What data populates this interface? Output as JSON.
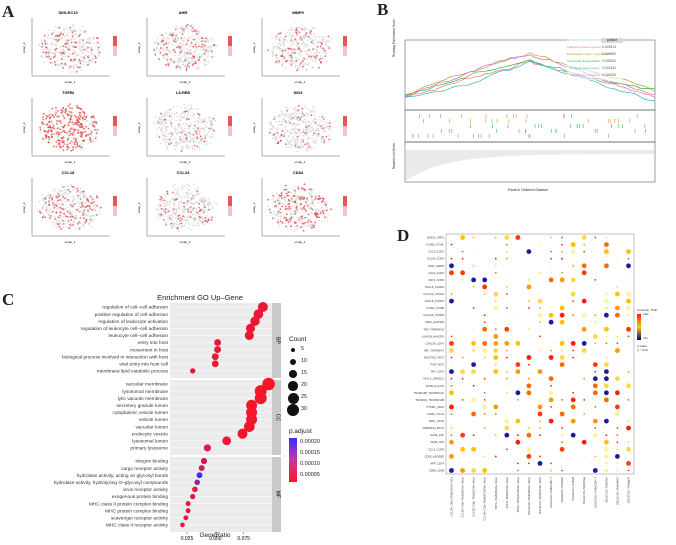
{
  "panels": {
    "A": {
      "label": "A",
      "plots": [
        {
          "title": "SIGLEC10"
        },
        {
          "title": "AHR"
        },
        {
          "title": "MMP9"
        },
        {
          "title": "TGFBI"
        },
        {
          "title": "LILRB5"
        },
        {
          "title": "SID3"
        },
        {
          "title": "CCL18"
        },
        {
          "title": "CCL24"
        },
        {
          "title": "CD84"
        }
      ],
      "xlabel": "umap_1",
      "ylabel": "umap_2"
    },
    "B": {
      "label": "B",
      "ylabel_top": "Running Enrichment Score",
      "ylabel_bottom": "Ranked List Metric",
      "xlabel": "Rank in Ordered Dataset",
      "pvalue_header": "pvalue",
      "pvalues": [
        "0.025414",
        "0.026852",
        "0.005302",
        "0.021631",
        "0.025120"
      ],
      "gene_sets": [
        {
          "name": "Adaptive Immune System",
          "color": "#e87b6c"
        },
        {
          "name": "Extracellular matrix organization",
          "color": "#b9a12c"
        },
        {
          "name": "Neutrophil degranulation",
          "color": "#33b24d"
        },
        {
          "name": "Innate immune system",
          "color": "#29b6c9"
        },
        {
          "name": "Signaling by receptors",
          "color": "#d46ad8"
        }
      ]
    },
    "C": {
      "label": "C",
      "title": "Enrichment GO Up–Gene",
      "xlabel": "GeneRatio",
      "x_ticks": [
        "0.025",
        "0.050",
        "0.075"
      ],
      "size_legend_title": "Count",
      "size_legend": [
        "5",
        "10",
        "15",
        "20",
        "25",
        "30"
      ],
      "color_legend_title": "p.adjust",
      "color_legend": [
        "0.00020",
        "0.00015",
        "0.00010",
        "0.00005"
      ],
      "facets": [
        {
          "name": "BP",
          "terms": [
            {
              "term": "regulation of cell–cell adhesion",
              "ratio": 0.092,
              "count": 22,
              "padj": 2e-05
            },
            {
              "term": "positive regulation of cell adhesion",
              "ratio": 0.088,
              "count": 21,
              "padj": 2e-05
            },
            {
              "term": "regulation of leukocyte activation",
              "ratio": 0.085,
              "count": 20,
              "padj": 2e-05
            },
            {
              "term": "regulation of leukocyte cell–cell adhesion",
              "ratio": 0.081,
              "count": 19,
              "padj": 2e-05
            },
            {
              "term": "leukocyte cell–cell adhesion",
              "ratio": 0.08,
              "count": 19,
              "padj": 2e-05
            },
            {
              "term": "entry into host",
              "ratio": 0.052,
              "count": 12,
              "padj": 2e-05
            },
            {
              "term": "movement in host",
              "ratio": 0.052,
              "count": 12,
              "padj": 2e-05
            },
            {
              "term": "biological process involved in interaction with host",
              "ratio": 0.05,
              "count": 12,
              "padj": 2e-05
            },
            {
              "term": "viral entry into host cell",
              "ratio": 0.05,
              "count": 12,
              "padj": 2e-05
            },
            {
              "term": "membrane lipid catabolic process",
              "ratio": 0.03,
              "count": 7,
              "padj": 3e-05
            }
          ]
        },
        {
          "name": "CC",
          "terms": [
            {
              "term": "vacuolar membrane",
              "ratio": 0.097,
              "count": 30,
              "padj": 1e-05
            },
            {
              "term": "lysosomal membrane",
              "ratio": 0.09,
              "count": 28,
              "padj": 1e-05
            },
            {
              "term": "lytic vacuole membrane",
              "ratio": 0.09,
              "count": 28,
              "padj": 1e-05
            },
            {
              "term": "secretory granule lumen",
              "ratio": 0.082,
              "count": 25,
              "padj": 1e-05
            },
            {
              "term": "cytoplasmic vesicle lumen",
              "ratio": 0.082,
              "count": 25,
              "padj": 1e-05
            },
            {
              "term": "vesicle lumen",
              "ratio": 0.082,
              "count": 25,
              "padj": 1e-05
            },
            {
              "term": "vacuolar lumen",
              "ratio": 0.08,
              "count": 24,
              "padj": 1e-05
            },
            {
              "term": "endocytic vesicle",
              "ratio": 0.074,
              "count": 22,
              "padj": 1e-05
            },
            {
              "term": "lysosomal lumen",
              "ratio": 0.06,
              "count": 18,
              "padj": 2e-05
            },
            {
              "term": "primary lysosome",
              "ratio": 0.043,
              "count": 13,
              "padj": 3e-05
            }
          ]
        },
        {
          "name": "MF",
          "terms": [
            {
              "term": "integrin binding",
              "ratio": 0.04,
              "count": 10,
              "padj": 5e-05
            },
            {
              "term": "cargo receptor activity",
              "ratio": 0.038,
              "count": 9,
              "padj": 5e-05
            },
            {
              "term": "hydrolase activity, acting on glycosyl bonds",
              "ratio": 0.036,
              "count": 9,
              "padj": 0.00021
            },
            {
              "term": "hydrolase activity, hydrolyzing O–glycosyl compounds",
              "ratio": 0.034,
              "count": 8,
              "padj": 0.00012
            },
            {
              "term": "virus receptor activity",
              "ratio": 0.032,
              "count": 8,
              "padj": 4e-05
            },
            {
              "term": "exogenous protein binding",
              "ratio": 0.03,
              "count": 7,
              "padj": 3e-05
            },
            {
              "term": "MHC class II protein complex binding",
              "ratio": 0.026,
              "count": 6,
              "padj": 3e-05
            },
            {
              "term": "MHC protein complex binding",
              "ratio": 0.026,
              "count": 6,
              "padj": 3e-05
            },
            {
              "term": "scavenger receptor activity",
              "ratio": 0.024,
              "count": 6,
              "padj": 3e-05
            },
            {
              "term": "MHC class II receptor activity",
              "ratio": 0.021,
              "count": 5,
              "padj": 3e-05
            }
          ]
        }
      ]
    },
    "D": {
      "label": "D",
      "rows": [
        "ANXA1_FPR1",
        "ICAM1_ITGAL",
        "CCL5_CCR1",
        "CCL24_CCR3",
        "CD47_SIRPA",
        "CCL2_CCR2",
        "CD74_COPA",
        "CXCL8_CXCR2",
        "CXCL12_CXCR4",
        "CXCL8_CXCR1",
        "ICAM1_ITGB2",
        "CXCL16_CXCR6",
        "CD44_HAVCR2",
        "TNF_TNFRSF1A",
        "LGALS9_HAVCR2",
        "LGALS9_CD47",
        "MIF_TNFRSF14",
        "NECTIN2_TIGIT",
        "PVR_TIGIT",
        "MIF_CD74",
        "HLA-C_KIR2DL1",
        "ICOSLG_ICOS",
        "TNFSF13B_TNFRSF13C",
        "TNFSF10_TNFRSF10B",
        "PTPRC_CD22",
        "CD86_CTLA4",
        "SPP1_CD44",
        "TNFRSF14_BTLA",
        "GAS6_AXL",
        "CD48_CD2",
        "CCL3_CCR5",
        "CD55_ADGRE5",
        "APP_CD74",
        "CD99_CD99"
      ],
      "cols": [
        "CCL18+ C3b+ TAMs|SRGN+ DCs",
        "CCL18+ C3b+ TAMs|SRGN+ Mono",
        "CCL18+ C3b+ TAMs|CD14+ Mono",
        "CCL18+ C3b+ TAMs|FCGR3A+ Mono",
        "SPP1+ TAMs|SRGN+ Mono",
        "SPP1+ TAMs|CD14+ Mono",
        "SPP1+ TAMs|FCGR3A+ Mono",
        "SIGLEC10+ TAMs|SRGN+ Mono",
        "SIGLEC10+ TAMs|CD14+ Mono",
        "SIGLEC10+ TAMs|CD8+ T",
        "SIGLEC10+ TAMs|NK",
        "SIGLEC10+ TAMs|B",
        "SIGLEC10+ TAMs|Treg",
        "SIGLEC10+ TAMs|CD4+ T",
        "SIGLEC10+ TAMs|Tex",
        "SIGLEC10+ TAMs|MAIT",
        "SIGLEC10+ TAMs|gdT"
      ],
      "legend_prob_title": "Commun. Prob.",
      "legend_prob": [
        "min",
        "max"
      ],
      "legend_pval_title": "p-value",
      "legend_pval": [
        "p < 0.01"
      ]
    }
  }
}
